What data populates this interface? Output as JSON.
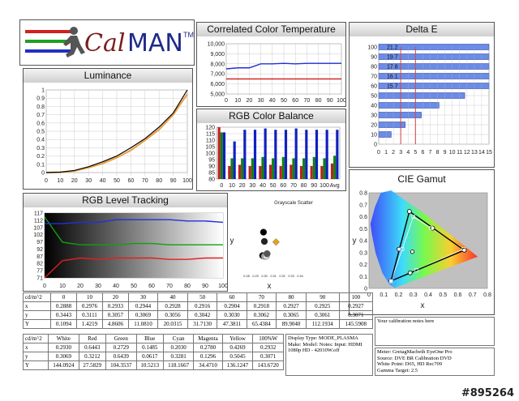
{
  "logo": {
    "text_cal": "Cal",
    "text_man": "MAN",
    "tm": "TM"
  },
  "watermark": "#895264",
  "cct": {
    "title": "Correlated Color Temperature",
    "yticks": [
      "10,000",
      "9,000",
      "8,000",
      "7,000",
      "6,000",
      "5,000"
    ],
    "xticks": [
      "0",
      "10",
      "20",
      "30",
      "40",
      "50",
      "60",
      "70",
      "80",
      "90",
      "100"
    ],
    "measured": [
      7500,
      7600,
      7600,
      8000,
      8000,
      8050,
      8000,
      8050,
      8050,
      8050,
      8050
    ],
    "target": 6500,
    "ylim": [
      5000,
      10000
    ]
  },
  "delta_e": {
    "title": "Delta E",
    "yticks": [
      "100",
      "90",
      "80",
      "70",
      "60",
      "50",
      "40",
      "30",
      "20",
      "10",
      "0"
    ],
    "xticks": [
      "0",
      "1",
      "2",
      "3",
      "4",
      "5",
      "6",
      "7",
      "8",
      "9",
      "10",
      "11",
      "12",
      "13",
      "14",
      "15"
    ],
    "bars": [
      {
        "y": 100,
        "value": 15,
        "label": "21.2"
      },
      {
        "y": 90,
        "value": 15,
        "label": "19.7"
      },
      {
        "y": 80,
        "value": 15,
        "label": "17.8"
      },
      {
        "y": 70,
        "value": 15,
        "label": "16.1"
      },
      {
        "y": 60,
        "value": 15,
        "label": "15.7"
      },
      {
        "y": 50,
        "value": 11.7,
        "label": ""
      },
      {
        "y": 40,
        "value": 8.2,
        "label": ""
      },
      {
        "y": 30,
        "value": 5.8,
        "label": ""
      },
      {
        "y": 20,
        "value": 3.6,
        "label": ""
      },
      {
        "y": 10,
        "value": 1.7,
        "label": ""
      },
      {
        "y": 0,
        "value": 0,
        "label": ""
      }
    ],
    "thresholds": [
      3,
      5
    ]
  },
  "luminance": {
    "title": "Luminance",
    "yticks": [
      "1",
      "0.9",
      "0.8",
      "0.7",
      "0.6",
      "0.5",
      "0.4",
      "0.3",
      "0.2",
      "0.1",
      "0"
    ],
    "xticks": [
      "0",
      "10",
      "20",
      "30",
      "40",
      "50",
      "60",
      "70",
      "80",
      "90",
      "100"
    ],
    "x": [
      0,
      10,
      20,
      30,
      40,
      50,
      60,
      70,
      80,
      90,
      100
    ],
    "measured": [
      0,
      0.005,
      0.025,
      0.07,
      0.13,
      0.2,
      0.3,
      0.41,
      0.55,
      0.72,
      1.0
    ],
    "target": [
      0,
      0.004,
      0.02,
      0.06,
      0.11,
      0.18,
      0.27,
      0.39,
      0.52,
      0.7,
      0.95
    ]
  },
  "rgb_balance": {
    "title": "RGB Color Balance",
    "yticks": [
      "120",
      "115",
      "110",
      "105",
      "100",
      "95",
      "90",
      "85",
      "80"
    ],
    "xticks": [
      "0",
      "10",
      "20",
      "30",
      "40",
      "50",
      "60",
      "70",
      "80",
      "90",
      "100",
      "Avg"
    ],
    "ylim": [
      80,
      120
    ],
    "red": [
      120,
      90,
      91,
      90,
      90,
      91,
      90,
      91,
      90,
      90,
      90,
      92
    ],
    "green": [
      116,
      96,
      96,
      96,
      97,
      96,
      97,
      96,
      96,
      97,
      96,
      98
    ],
    "blue": [
      116,
      109,
      118,
      118,
      119,
      118,
      118,
      119,
      118,
      118,
      118,
      118
    ]
  },
  "scatter": {
    "title": "Grayscale Scatter",
    "xlabel": "x",
    "ylabel": "y",
    "xticks": [
      "0.28",
      "0.29",
      "0.30",
      "0.31",
      "0.32",
      "0.33",
      "0.34"
    ],
    "points": [
      {
        "x": 0.299,
        "y": 0.345,
        "color": "#000000"
      },
      {
        "x": 0.3,
        "y": 0.33,
        "color": "#222222"
      },
      {
        "x": 0.298,
        "y": 0.307,
        "color": "#111111"
      },
      {
        "x": 0.3,
        "y": 0.306,
        "color": "#aaaaaa"
      },
      {
        "x": 0.302,
        "y": 0.306,
        "color": "#dddddd"
      },
      {
        "x": 0.303,
        "y": 0.31,
        "color": "#555555"
      },
      {
        "x": 0.313,
        "y": 0.329,
        "color": "#e8a020"
      }
    ],
    "xlim": [
      0.28,
      0.34
    ],
    "ylim": [
      0.28,
      0.38
    ]
  },
  "rgb_level": {
    "title": "RGB Level Tracking",
    "yticks": [
      "117",
      "112",
      "107",
      "102",
      "97",
      "92",
      "87",
      "82",
      "77",
      "71"
    ],
    "xticks": [
      "0",
      "10",
      "20",
      "30",
      "40",
      "50",
      "60",
      "70",
      "80",
      "90",
      "100"
    ],
    "ylim": [
      71,
      120
    ],
    "x": [
      0,
      10,
      20,
      30,
      40,
      50,
      60,
      70,
      80,
      90,
      100
    ],
    "red": [
      71,
      84,
      86,
      85,
      86,
      86,
      86,
      85,
      85,
      86,
      86
    ],
    "green": [
      117,
      98,
      96,
      96,
      96,
      97,
      97,
      96,
      96,
      96,
      96
    ],
    "blue": [
      112,
      112,
      113,
      113,
      115,
      115,
      115,
      115,
      114,
      114,
      113
    ]
  },
  "cie": {
    "title": "CIE Gamut",
    "xlabel": "x",
    "ylabel": "y",
    "xticks": [
      "0",
      "0.1",
      "0.2",
      "0.3",
      "0.4",
      "0.5",
      "0.6",
      "0.7",
      "0.8"
    ],
    "yticks": [
      "0.8",
      "0.7",
      "0.6",
      "0.5",
      "0.4",
      "0.3",
      "0.2",
      "0.1",
      "0"
    ],
    "measured": [
      [
        0.644,
        0.32
      ],
      [
        0.273,
        0.644
      ],
      [
        0.149,
        0.062
      ]
    ],
    "measured_sec": [
      [
        0.278,
        0.13
      ],
      [
        0.43,
        0.504
      ],
      [
        0.203,
        0.328
      ]
    ],
    "target": [
      [
        0.64,
        0.33
      ],
      [
        0.3,
        0.6
      ],
      [
        0.15,
        0.06
      ]
    ],
    "target_sec": [
      [
        0.321,
        0.154
      ],
      [
        0.419,
        0.505
      ],
      [
        0.225,
        0.329
      ]
    ],
    "white": [
      0.293,
      0.307
    ]
  },
  "gray_table": {
    "header": [
      "cd/m^2",
      "0",
      "10",
      "20",
      "30",
      "40",
      "50",
      "60",
      "70",
      "80",
      "90",
      "100"
    ],
    "rows": [
      [
        "x",
        "0.2888",
        "0.2976",
        "0.2933",
        "0.2944",
        "0.2928",
        "0.2916",
        "0.2904",
        "0.2918",
        "0.2927",
        "0.2925",
        "0.2927"
      ],
      [
        "y",
        "0.3443",
        "0.3111",
        "0.3057",
        "0.3069",
        "0.3056",
        "0.3042",
        "0.3030",
        "0.3062",
        "0.3065",
        "0.3061",
        "0.3071"
      ],
      [
        "Y",
        "0.1094",
        "1.4219",
        "4.8606",
        "11.0810",
        "20.0315",
        "31.7130",
        "47.3811",
        "65.4384",
        "89.9040",
        "112.1934",
        "145.5908"
      ]
    ]
  },
  "color_table": {
    "header": [
      "cd/m^2",
      "White",
      "Red",
      "Green",
      "Blue",
      "Cyan",
      "Magenta",
      "Yellow",
      "100%W"
    ],
    "rows": [
      [
        "x",
        "0.2930",
        "0.6443",
        "0.2729",
        "0.1485",
        "0.2030",
        "0.2780",
        "0.4269",
        "0.2932"
      ],
      [
        "y",
        "0.3069",
        "0.3212",
        "0.6439",
        "0.0617",
        "0.3281",
        "0.1296",
        "0.5045",
        "0.3071"
      ],
      [
        "Y",
        "144.0924",
        "27.5829",
        "104.3537",
        "10.5213",
        "118.1667",
        "34.4710",
        "136.1247",
        "143.6720"
      ]
    ]
  },
  "display_info": [
    "Display Type: MODE_PLASMA",
    "Make: Model: Notes: Input: HDMI",
    "1080p HD   -   42010W.off"
  ],
  "notes_placeholder": "Your calibration notes here",
  "meter_info": [
    "Meter: GretagMacbeth EyeOne Pro",
    "Source: DVE BR Calibration DVD",
    "White Point: D65, HD Rec709",
    "Gamma Target: 2.5"
  ]
}
